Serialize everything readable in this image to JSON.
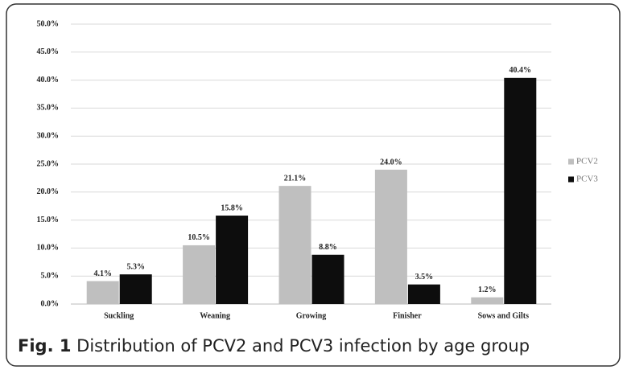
{
  "chart_data": {
    "type": "bar",
    "categories": [
      "Suckling",
      "Weaning",
      "Growing",
      "Finisher",
      "Sows and Gilts"
    ],
    "series": [
      {
        "name": "PCV2",
        "color": "#bfbfbf",
        "values": [
          4.1,
          10.5,
          21.1,
          24.0,
          1.2
        ],
        "value_labels": [
          "4.1%",
          "10.5%",
          "21.1%",
          "24.0%",
          "1.2%"
        ]
      },
      {
        "name": "PCV3",
        "color": "#0d0d0d",
        "values": [
          5.3,
          15.8,
          8.8,
          3.5,
          40.4
        ],
        "value_labels": [
          "5.3%",
          "15.8%",
          "8.8%",
          "3.5%",
          "40.4%"
        ]
      }
    ],
    "ylim": [
      0,
      50
    ],
    "yticks": [
      {
        "value": 0,
        "label": "0.0%"
      },
      {
        "value": 5,
        "label": "5.0%"
      },
      {
        "value": 10,
        "label": "10.0%"
      },
      {
        "value": 15,
        "label": "15.0%"
      },
      {
        "value": 20,
        "label": "20.0%"
      },
      {
        "value": 25,
        "label": "25.0%"
      },
      {
        "value": 30,
        "label": "30.0%"
      },
      {
        "value": 35,
        "label": "35.0%"
      },
      {
        "value": 40,
        "label": "40.0%"
      },
      {
        "value": 45,
        "label": "45.0%"
      },
      {
        "value": 50,
        "label": "50.0%"
      }
    ],
    "grid": true,
    "legend": "right",
    "caption": {
      "label": "Fig. 1",
      "text": "Distribution of PCV2 and PCV3 infection by age group"
    }
  }
}
